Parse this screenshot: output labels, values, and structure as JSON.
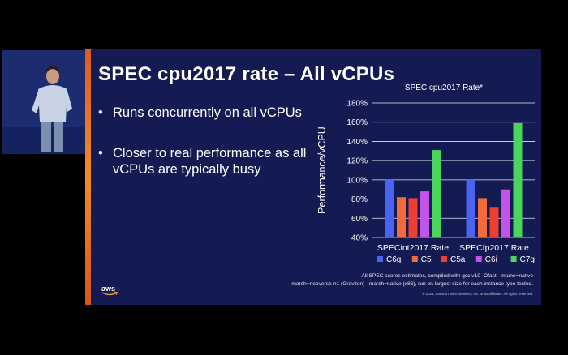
{
  "slide": {
    "title": "SPEC cpu2017 rate – All vCPUs",
    "bullets": [
      "Runs concurrently on all vCPUs",
      "Closer to real performance as all vCPUs are typically busy"
    ],
    "footnote_line1": "All SPEC scores estimates, compiled with gcc v10 -Ofast –mtune=native",
    "footnote_line2": "–march=neoverse-n1 (Graviton) –march=native (x86), run on largest size for each instance type tested.",
    "copyright": "© 2021, Amazon Web Services, Inc. or its affiliates. All rights reserved.",
    "logo_text": "aws"
  },
  "chart_data": {
    "type": "bar",
    "title": "SPEC cpu2017 Rate*",
    "ylabel": "Performance/vCPU",
    "xlabel": "",
    "categories": [
      "SPECint2017 Rate",
      "SPECfp2017 Rate"
    ],
    "yticks": [
      "40%",
      "60%",
      "80%",
      "100%",
      "120%",
      "140%",
      "160%",
      "180%"
    ],
    "ylim": [
      40,
      180
    ],
    "grid": true,
    "legend_position": "bottom",
    "series": [
      {
        "name": "C6g",
        "color": "#4a63f0",
        "values": [
          100,
          100
        ]
      },
      {
        "name": "C5",
        "color": "#f26b3a",
        "values": [
          82,
          81
        ]
      },
      {
        "name": "C5a",
        "color": "#ee3f33",
        "values": [
          81,
          71
        ]
      },
      {
        "name": "C6i",
        "color": "#c354ea",
        "values": [
          88,
          90
        ]
      },
      {
        "name": "C7g",
        "color": "#49d45b",
        "values": [
          131,
          159
        ]
      }
    ]
  }
}
